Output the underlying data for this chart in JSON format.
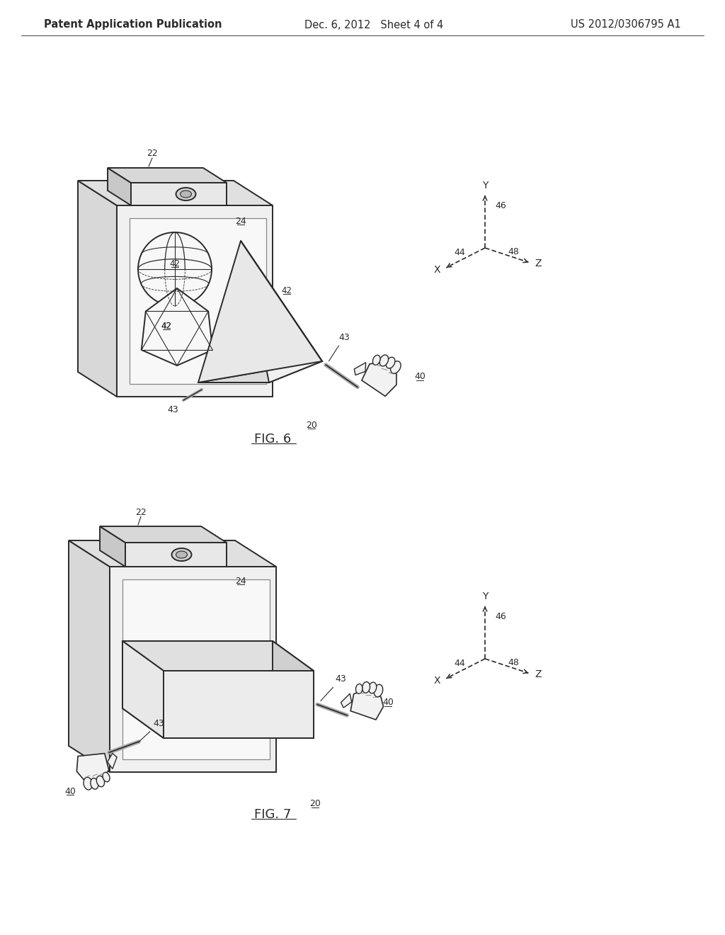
{
  "bg_color": "#ffffff",
  "line_color": "#2a2a2a",
  "line_width": 1.4,
  "header": {
    "left": "Patent Application Publication",
    "center": "Dec. 6, 2012   Sheet 4 of 4",
    "right": "US 2012/0306795 A1",
    "fontsize": 10.5
  }
}
